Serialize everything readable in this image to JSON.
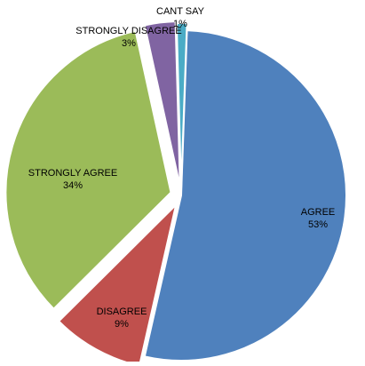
{
  "chart_data": {
    "type": "pie",
    "title": "",
    "legend": "none",
    "slices": [
      {
        "label": "AGREE",
        "value": 53,
        "percent_label": "53%",
        "color": "#4F81BD"
      },
      {
        "label": "DISAGREE",
        "value": 9,
        "percent_label": "9%",
        "color": "#C0504D"
      },
      {
        "label": "STRONGLY AGREE",
        "value": 34,
        "percent_label": "34%",
        "color": "#9BBB59"
      },
      {
        "label": "STRONGLY DISAGREE",
        "value": 3,
        "percent_label": "3%",
        "color": "#8064A2"
      },
      {
        "label": "CANT SAY",
        "value": 1,
        "percent_label": "1%",
        "color": "#4BACC6"
      }
    ]
  }
}
